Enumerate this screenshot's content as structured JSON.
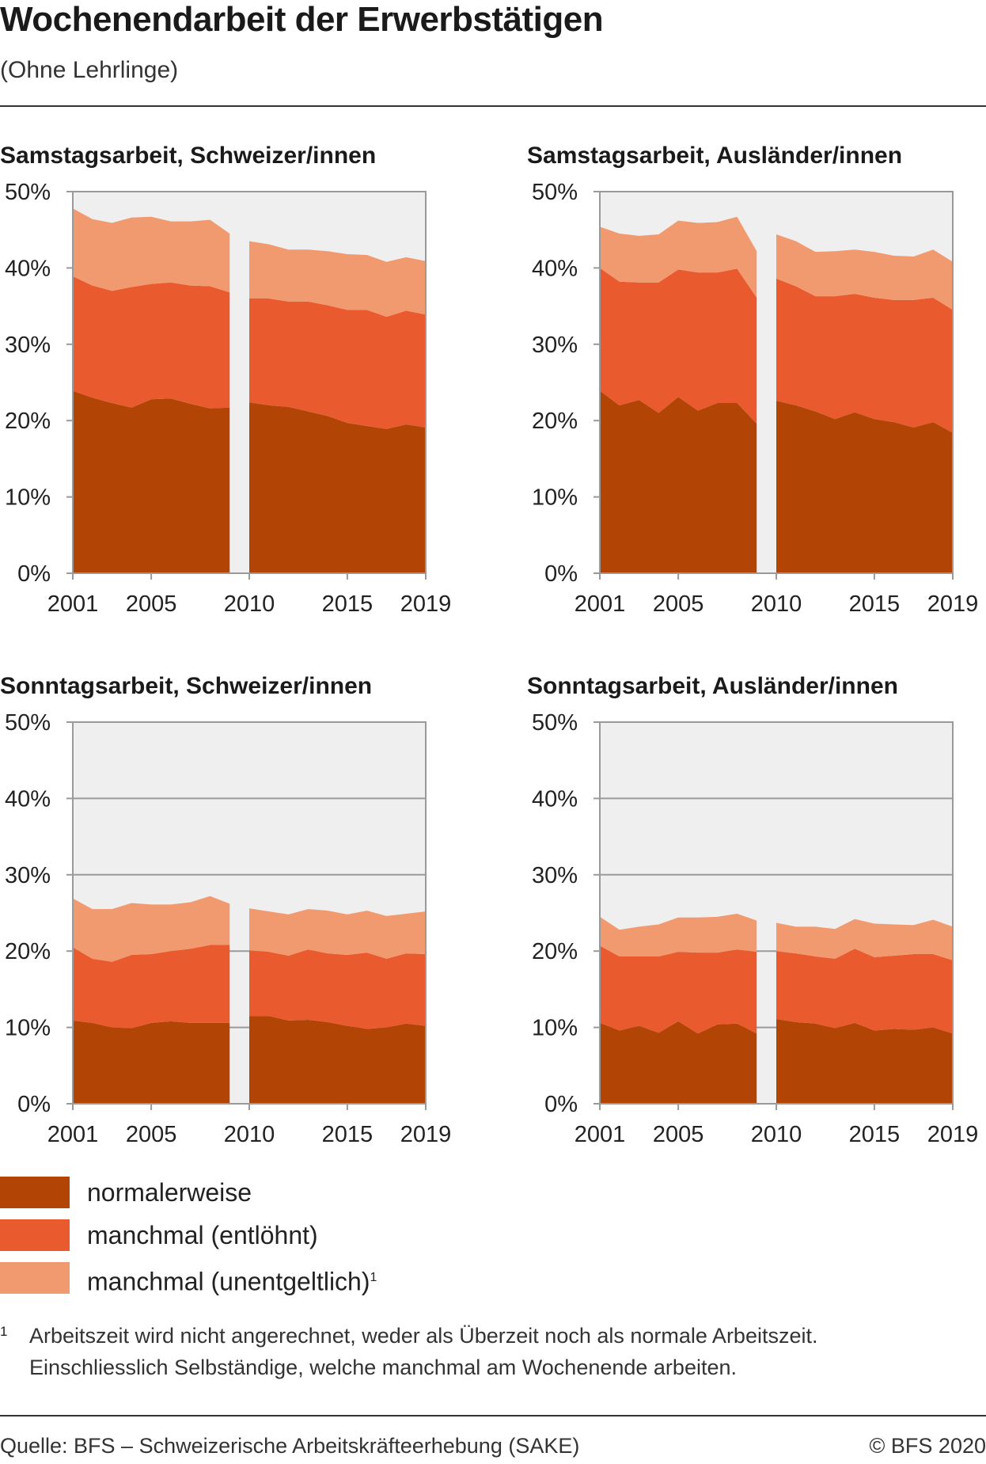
{
  "title": "Wochenendarbeit der Erwerbstätigen",
  "subtitle": "(Ohne Lehrlinge)",
  "colors": {
    "normalerweise": "#b24506",
    "manchmal_entloehnt": "#e95a2e",
    "manchmal_unentgeltlich": "#f29a6f",
    "plot_background": "#efefef",
    "axis": "#9a9a9a"
  },
  "legend": [
    {
      "label": "normalerweise",
      "color": "#b24506",
      "sup": ""
    },
    {
      "label": "manchmal (entlöhnt)",
      "color": "#e95a2e",
      "sup": ""
    },
    {
      "label": "manchmal (unentgeltlich)",
      "color": "#f29a6f",
      "sup": "1"
    }
  ],
  "footnote": {
    "mark": "1",
    "line1": "Arbeitszeit wird nicht angerechnet, weder als Überzeit noch als normale Arbeitszeit.",
    "line2": "Einschliesslich Selbständige, welche manchmal am Wochenende arbeiten."
  },
  "source": "Quelle: BFS – Schweizerische Arbeitskräfteerhebung (SAKE)",
  "copyright": "© BFS 2020",
  "chart_data": [
    {
      "type": "area",
      "stacked": true,
      "title": "Samstagsarbeit, Schweizer/innen",
      "x": [
        2001,
        2002,
        2003,
        2004,
        2005,
        2006,
        2007,
        2008,
        2009,
        2010,
        2011,
        2012,
        2013,
        2014,
        2015,
        2016,
        2017,
        2018,
        2019
      ],
      "x_break": [
        2009,
        2010
      ],
      "xticks": [
        "2001",
        "2005",
        "2010",
        "2015",
        "2019"
      ],
      "yticks": [
        "0%",
        "10%",
        "20%",
        "30%",
        "40%",
        "50%"
      ],
      "ylim": [
        0,
        50
      ],
      "grid": false,
      "series": [
        {
          "name": "normalerweise",
          "values": [
            23.9,
            23.0,
            22.3,
            21.7,
            22.8,
            22.9,
            22.2,
            21.6,
            21.7,
            22.4,
            22.0,
            21.8,
            21.2,
            20.6,
            19.7,
            19.3,
            18.9,
            19.5,
            19.1
          ]
        },
        {
          "name": "manchmal (entlöhnt)",
          "values": [
            15.0,
            14.7,
            14.7,
            15.8,
            15.1,
            15.2,
            15.5,
            16.0,
            15.1,
            13.6,
            14.0,
            13.8,
            14.4,
            14.5,
            14.8,
            15.2,
            14.7,
            14.9,
            14.8
          ]
        },
        {
          "name": "manchmal (unentgeltlich)",
          "values": [
            8.9,
            8.7,
            8.9,
            9.1,
            8.8,
            8.0,
            8.4,
            8.7,
            7.7,
            7.5,
            7.1,
            6.8,
            6.8,
            7.1,
            7.3,
            7.2,
            7.2,
            7.0,
            7.0
          ]
        }
      ]
    },
    {
      "type": "area",
      "stacked": true,
      "title": "Samstagsarbeit, Ausländer/innen",
      "x": [
        2001,
        2002,
        2003,
        2004,
        2005,
        2006,
        2007,
        2008,
        2009,
        2010,
        2011,
        2012,
        2013,
        2014,
        2015,
        2016,
        2017,
        2018,
        2019
      ],
      "x_break": [
        2009,
        2010
      ],
      "xticks": [
        "2001",
        "2005",
        "2010",
        "2015",
        "2019"
      ],
      "yticks": [
        "0%",
        "10%",
        "20%",
        "30%",
        "40%",
        "50%"
      ],
      "ylim": [
        0,
        50
      ],
      "grid": false,
      "series": [
        {
          "name": "normalerweise",
          "values": [
            23.9,
            22.0,
            22.7,
            21.0,
            23.1,
            21.3,
            22.3,
            22.3,
            19.6,
            22.6,
            22.0,
            21.2,
            20.2,
            21.1,
            20.2,
            19.8,
            19.1,
            19.8,
            18.4
          ]
        },
        {
          "name": "manchmal (entlöhnt)",
          "values": [
            16.1,
            16.2,
            15.4,
            17.1,
            16.7,
            18.1,
            17.1,
            17.6,
            16.5,
            16.0,
            15.6,
            15.1,
            16.1,
            15.5,
            15.9,
            16.0,
            16.7,
            16.3,
            16.1
          ]
        },
        {
          "name": "manchmal (unentgeltlich)",
          "values": [
            5.4,
            6.3,
            6.1,
            6.3,
            6.4,
            6.5,
            6.6,
            6.8,
            6.1,
            5.8,
            5.9,
            5.8,
            5.9,
            5.8,
            6.0,
            5.8,
            5.7,
            6.3,
            6.3
          ]
        }
      ]
    },
    {
      "type": "area",
      "stacked": true,
      "title": "Sonntagsarbeit, Schweizer/innen",
      "x": [
        2001,
        2002,
        2003,
        2004,
        2005,
        2006,
        2007,
        2008,
        2009,
        2010,
        2011,
        2012,
        2013,
        2014,
        2015,
        2016,
        2017,
        2018,
        2019
      ],
      "x_break": [
        2009,
        2010
      ],
      "xticks": [
        "2001",
        "2005",
        "2010",
        "2015",
        "2019"
      ],
      "yticks": [
        "0%",
        "10%",
        "20%",
        "30%",
        "40%",
        "50%"
      ],
      "ylim": [
        0,
        50
      ],
      "grid": true,
      "series": [
        {
          "name": "normalerweise",
          "values": [
            10.9,
            10.6,
            10.0,
            9.9,
            10.6,
            10.8,
            10.6,
            10.6,
            10.6,
            11.5,
            11.5,
            10.9,
            11.0,
            10.7,
            10.2,
            9.8,
            10.0,
            10.5,
            10.2
          ]
        },
        {
          "name": "manchmal (entlöhnt)",
          "values": [
            9.6,
            8.4,
            8.6,
            9.6,
            9.0,
            9.2,
            9.7,
            10.2,
            10.2,
            8.6,
            8.4,
            8.5,
            9.2,
            9.0,
            9.3,
            10.0,
            9.0,
            9.2,
            9.4
          ]
        },
        {
          "name": "manchmal (unentgeltlich)",
          "values": [
            6.4,
            6.5,
            6.9,
            6.8,
            6.5,
            6.1,
            6.1,
            6.4,
            5.4,
            5.5,
            5.3,
            5.4,
            5.3,
            5.6,
            5.3,
            5.5,
            5.6,
            5.2,
            5.6
          ]
        }
      ]
    },
    {
      "type": "area",
      "stacked": true,
      "title": "Sonntagsarbeit, Ausländer/innen",
      "x": [
        2001,
        2002,
        2003,
        2004,
        2005,
        2006,
        2007,
        2008,
        2009,
        2010,
        2011,
        2012,
        2013,
        2014,
        2015,
        2016,
        2017,
        2018,
        2019
      ],
      "x_break": [
        2009,
        2010
      ],
      "xticks": [
        "2001",
        "2005",
        "2010",
        "2015",
        "2019"
      ],
      "yticks": [
        "0%",
        "10%",
        "20%",
        "30%",
        "40%",
        "50%"
      ],
      "ylim": [
        0,
        50
      ],
      "grid": true,
      "series": [
        {
          "name": "normalerweise",
          "values": [
            10.6,
            9.6,
            10.2,
            9.3,
            10.8,
            9.2,
            10.4,
            10.5,
            9.2,
            11.1,
            10.7,
            10.5,
            9.9,
            10.6,
            9.6,
            9.8,
            9.7,
            10.0,
            9.2
          ]
        },
        {
          "name": "manchmal (entlöhnt)",
          "values": [
            10.1,
            9.7,
            9.1,
            10.0,
            9.1,
            10.6,
            9.4,
            9.7,
            10.7,
            8.9,
            9.0,
            8.8,
            9.1,
            9.7,
            9.6,
            9.6,
            9.9,
            9.6,
            9.6
          ]
        },
        {
          "name": "manchmal (unentgeltlich)",
          "values": [
            3.8,
            3.5,
            3.9,
            4.2,
            4.5,
            4.6,
            4.7,
            4.7,
            4.1,
            3.7,
            3.5,
            3.9,
            3.9,
            3.9,
            4.4,
            4.1,
            3.8,
            4.5,
            4.4
          ]
        }
      ]
    }
  ]
}
